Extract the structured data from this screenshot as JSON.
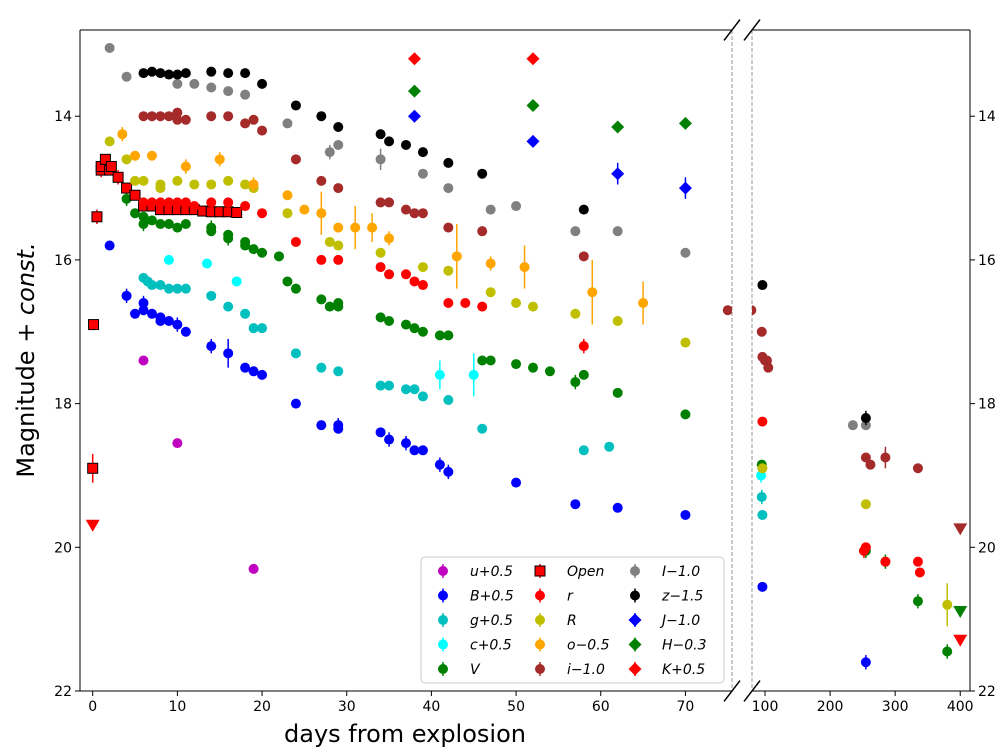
{
  "chart_data": {
    "type": "scatter",
    "title": "",
    "xlabel": "days from explosion",
    "ylabel_main": "Magnitude + ",
    "ylabel_italic": "const.",
    "ylim": [
      22,
      12.8
    ],
    "panels": [
      {
        "name": "left",
        "xlim": [
          -1.5,
          75.5
        ],
        "xticks": [
          0,
          10,
          20,
          30,
          40,
          50,
          60,
          70
        ],
        "y_tick_labels": true
      },
      {
        "name": "right",
        "xlim": [
          80,
          415
        ],
        "xticks": [
          100,
          200,
          300,
          400
        ],
        "y_tick_labels": false,
        "right_tick_labels": true
      }
    ],
    "yticks": [
      14,
      16,
      18,
      20,
      22
    ],
    "legend": {
      "placement": "lower-right",
      "entries": [
        {
          "label": "u+0.5",
          "color": "#bf00bf",
          "marker": "circle"
        },
        {
          "label": "B+0.5",
          "color": "#0000ff",
          "marker": "circle"
        },
        {
          "label": "g+0.5",
          "color": "#00bfbf",
          "marker": "circle"
        },
        {
          "label": "c+0.5",
          "color": "#00ffff",
          "marker": "circle"
        },
        {
          "label": "V",
          "color": "#008000",
          "marker": "circle"
        },
        {
          "label": "Open",
          "color": "#ff0000",
          "marker": "square"
        },
        {
          "label": "r",
          "color": "#ff0000",
          "marker": "circle"
        },
        {
          "label": "R",
          "color": "#bfbf00",
          "marker": "circle"
        },
        {
          "label": "o−0.5",
          "color": "#ffa500",
          "marker": "circle"
        },
        {
          "label": "i−1.0",
          "color": "#a52a2a",
          "marker": "circle"
        },
        {
          "label": "I−1.0",
          "color": "#808080",
          "marker": "circle"
        },
        {
          "label": "z−1.5",
          "color": "#000000",
          "marker": "circle"
        },
        {
          "label": "J−1.0",
          "color": "#0000ff",
          "marker": "diamond"
        },
        {
          "label": "H−0.3",
          "color": "#008000",
          "marker": "diamond"
        },
        {
          "label": "K+0.5",
          "color": "#ff0000",
          "marker": "diamond"
        }
      ]
    },
    "series": [
      {
        "name": "u+0.5",
        "color": "#bf00bf",
        "marker": "circle",
        "x": [
          6,
          10,
          19
        ],
        "y": [
          17.4,
          18.55,
          20.3
        ]
      },
      {
        "name": "B+0.5",
        "color": "#0000ff",
        "marker": "circle",
        "x": [
          2,
          4,
          5,
          6,
          6,
          7,
          8,
          8,
          9,
          10,
          11,
          14,
          16,
          18,
          19,
          20,
          24,
          27,
          29,
          29,
          34,
          35,
          37,
          38,
          39,
          41,
          42,
          50,
          57,
          62,
          70,
          96,
          255
        ],
        "y": [
          15.8,
          16.5,
          16.75,
          16.6,
          16.7,
          16.75,
          16.8,
          16.85,
          16.85,
          16.9,
          17.0,
          17.2,
          17.3,
          17.5,
          17.55,
          17.6,
          18.0,
          18.3,
          18.3,
          18.35,
          18.4,
          18.5,
          18.55,
          18.65,
          18.65,
          18.85,
          18.95,
          19.1,
          19.4,
          19.45,
          19.55,
          20.55,
          21.6
        ],
        "err": [
          0,
          0.1,
          0,
          0.1,
          0,
          0,
          0,
          0,
          0,
          0.1,
          0,
          0.1,
          0.2,
          0,
          0,
          0,
          0,
          0,
          0.1,
          0,
          0,
          0.1,
          0.1,
          0,
          0,
          0.1,
          0.1,
          0,
          0,
          0,
          0,
          0,
          0.1
        ]
      },
      {
        "name": "g+0.5",
        "color": "#00bfbf",
        "marker": "circle",
        "x": [
          6,
          6.5,
          7,
          8,
          9,
          10,
          11,
          14,
          16,
          18,
          19,
          20,
          24,
          27,
          29,
          34,
          35,
          37,
          38,
          39,
          42,
          46,
          58,
          61,
          95,
          96
        ],
        "y": [
          16.25,
          16.3,
          16.35,
          16.35,
          16.4,
          16.4,
          16.4,
          16.5,
          16.65,
          16.75,
          16.95,
          16.95,
          17.3,
          17.5,
          17.55,
          17.75,
          17.75,
          17.8,
          17.8,
          17.9,
          17.95,
          18.35,
          18.65,
          18.6,
          19.3,
          19.55
        ],
        "err": [
          0,
          0,
          0,
          0,
          0,
          0,
          0,
          0,
          0,
          0,
          0,
          0,
          0,
          0,
          0,
          0,
          0,
          0,
          0,
          0,
          0,
          0,
          0,
          0,
          0.1,
          0
        ]
      },
      {
        "name": "c+0.5",
        "color": "#00ffff",
        "marker": "circle",
        "x": [
          9,
          13.5,
          17,
          41,
          45,
          94
        ],
        "y": [
          16.0,
          16.05,
          16.3,
          17.6,
          17.6,
          19.0
        ],
        "err": [
          0,
          0,
          0,
          0.2,
          0.3,
          0.1
        ]
      },
      {
        "name": "V",
        "color": "#008000",
        "marker": "circle",
        "x": [
          4,
          5,
          6,
          6,
          7,
          8,
          9,
          10,
          11,
          14,
          14,
          16,
          16,
          18,
          18,
          19,
          20,
          22,
          23,
          24,
          27,
          28,
          29,
          29,
          34,
          35,
          37,
          38,
          39,
          41,
          42,
          46,
          47,
          50,
          52,
          54,
          57,
          58,
          62,
          70,
          95,
          255,
          285,
          335,
          380
        ],
        "y": [
          15.15,
          15.35,
          15.4,
          15.5,
          15.45,
          15.5,
          15.5,
          15.55,
          15.5,
          15.55,
          15.6,
          15.65,
          15.7,
          15.75,
          15.8,
          15.85,
          15.9,
          15.95,
          16.3,
          16.4,
          16.55,
          16.65,
          16.6,
          16.65,
          16.8,
          16.85,
          16.9,
          16.95,
          17.0,
          17.05,
          17.05,
          17.4,
          17.4,
          17.45,
          17.5,
          17.55,
          17.7,
          17.6,
          17.85,
          18.15,
          18.85,
          20.05,
          20.2,
          20.75,
          21.45
        ],
        "err": [
          0.1,
          0,
          0,
          0.1,
          0,
          0,
          0,
          0,
          0,
          0.1,
          0,
          0,
          0.1,
          0,
          0,
          0,
          0,
          0,
          0,
          0,
          0,
          0,
          0,
          0,
          0,
          0,
          0,
          0,
          0,
          0,
          0,
          0,
          0,
          0,
          0,
          0,
          0.1,
          0,
          0,
          0,
          0,
          0.1,
          0.1,
          0.1,
          0.1
        ]
      },
      {
        "name": "Open",
        "color": "#ff0000",
        "marker": "square",
        "x": [
          0,
          0.1,
          0.5,
          1,
          1,
          1.5,
          2,
          2.2,
          3,
          4,
          5,
          6,
          7,
          8,
          9,
          10,
          11,
          12,
          13,
          14,
          15,
          16,
          17
        ],
        "y": [
          18.9,
          16.9,
          15.4,
          14.75,
          14.7,
          14.6,
          14.75,
          14.7,
          14.85,
          15.0,
          15.1,
          15.25,
          15.25,
          15.3,
          15.3,
          15.3,
          15.3,
          15.3,
          15.32,
          15.33,
          15.33,
          15.33,
          15.34
        ],
        "err": [
          0.2,
          0,
          0.1,
          0.1,
          0,
          0,
          0,
          0,
          0.1,
          0,
          0,
          0,
          0,
          0,
          0,
          0,
          0,
          0,
          0,
          0,
          0,
          0,
          0
        ]
      },
      {
        "name": "r",
        "color": "#ff0000",
        "marker": "circle",
        "x": [
          6,
          7,
          8,
          9,
          10,
          11,
          12,
          14,
          16,
          18,
          20,
          24,
          27,
          29,
          34,
          35,
          37,
          38,
          39,
          42,
          44,
          46,
          58,
          96,
          252,
          255,
          285,
          335,
          338
        ],
        "y": [
          15.2,
          15.2,
          15.2,
          15.2,
          15.2,
          15.2,
          15.25,
          15.2,
          15.2,
          15.25,
          15.35,
          15.75,
          16.0,
          16.0,
          16.1,
          16.2,
          16.2,
          16.3,
          16.35,
          16.6,
          16.6,
          16.65,
          17.2,
          18.25,
          20.05,
          20.0,
          20.2,
          20.2,
          20.35
        ],
        "err": [
          0,
          0,
          0,
          0,
          0,
          0,
          0,
          0,
          0,
          0,
          0,
          0,
          0,
          0,
          0,
          0,
          0,
          0,
          0,
          0,
          0,
          0,
          0.1,
          0,
          0.1,
          0,
          0,
          0,
          0
        ]
      },
      {
        "name": "R",
        "color": "#bfbf00",
        "marker": "circle",
        "x": [
          2,
          4,
          5,
          6,
          8,
          8,
          10,
          12,
          14,
          16,
          18,
          19,
          23,
          28,
          29,
          34,
          39,
          42,
          47,
          50,
          52,
          57,
          62,
          70,
          96,
          255,
          380
        ],
        "y": [
          14.35,
          14.6,
          14.9,
          14.9,
          14.95,
          15.0,
          14.9,
          14.95,
          14.95,
          14.9,
          14.95,
          15.0,
          15.35,
          15.75,
          15.8,
          15.9,
          16.1,
          16.15,
          16.45,
          16.6,
          16.65,
          16.75,
          16.85,
          17.15,
          18.9,
          19.4,
          20.8
        ],
        "err": [
          0,
          0,
          0,
          0,
          0,
          0,
          0,
          0,
          0,
          0,
          0,
          0,
          0,
          0,
          0,
          0,
          0,
          0,
          0,
          0,
          0,
          0,
          0,
          0,
          0,
          0,
          0.3
        ]
      },
      {
        "name": "o−0.5",
        "color": "#ffa500",
        "marker": "circle",
        "x": [
          3.5,
          5,
          7,
          11,
          15,
          19,
          23,
          25,
          27,
          29,
          31,
          33,
          35,
          43,
          47,
          51,
          59,
          65
        ],
        "y": [
          14.25,
          14.55,
          14.55,
          14.7,
          14.6,
          14.95,
          15.1,
          15.3,
          15.35,
          15.55,
          15.55,
          15.55,
          15.7,
          15.95,
          16.05,
          16.1,
          16.45,
          16.6
        ],
        "err": [
          0.1,
          0,
          0,
          0.1,
          0.1,
          0.1,
          0,
          0,
          0.3,
          0,
          0.3,
          0.2,
          0.1,
          0.45,
          0.1,
          0.3,
          0.45,
          0.3
        ]
      },
      {
        "name": "i−1.0",
        "color": "#a52a2a",
        "marker": "circle",
        "x": [
          6,
          7,
          8,
          9,
          10,
          10,
          11,
          14,
          16,
          18,
          19,
          20,
          24,
          27,
          29,
          34,
          35,
          37,
          38,
          39,
          42,
          46,
          58,
          75,
          79,
          95,
          96,
          100,
          103,
          105,
          255,
          262,
          285,
          335
        ],
        "y": [
          14.0,
          14.0,
          14.0,
          14.0,
          14.05,
          13.95,
          14.05,
          14.0,
          14.0,
          14.1,
          14.05,
          14.2,
          14.6,
          14.9,
          15.0,
          15.2,
          15.2,
          15.3,
          15.35,
          15.35,
          15.55,
          15.6,
          15.95,
          16.7,
          16.7,
          17.0,
          17.35,
          17.4,
          17.4,
          17.5,
          18.75,
          18.85,
          18.75,
          18.9
        ],
        "err": [
          0,
          0,
          0,
          0,
          0,
          0,
          0,
          0,
          0,
          0,
          0,
          0,
          0,
          0,
          0,
          0,
          0,
          0,
          0,
          0,
          0,
          0,
          0,
          0,
          0,
          0,
          0,
          0,
          0,
          0,
          0,
          0,
          0.15,
          0
        ]
      },
      {
        "name": "I−1.0",
        "color": "#808080",
        "marker": "circle",
        "x": [
          2,
          4,
          10,
          12,
          14,
          16,
          18,
          23,
          28,
          29,
          34,
          39,
          42,
          47,
          50,
          57,
          62,
          70,
          235,
          255
        ],
        "y": [
          13.05,
          13.45,
          13.55,
          13.55,
          13.6,
          13.65,
          13.7,
          14.1,
          14.5,
          14.4,
          14.6,
          14.8,
          15.0,
          15.3,
          15.25,
          15.6,
          15.6,
          15.9,
          18.3,
          18.3
        ],
        "err": [
          0,
          0,
          0,
          0,
          0,
          0,
          0,
          0,
          0.1,
          0,
          0.15,
          0,
          0,
          0,
          0,
          0,
          0,
          0,
          0,
          0
        ]
      },
      {
        "name": "z−1.5",
        "color": "#000000",
        "marker": "circle",
        "x": [
          6,
          7,
          8,
          9,
          10,
          11,
          14,
          16,
          18,
          20,
          24,
          27,
          29,
          34,
          35,
          37,
          39,
          42,
          46,
          58,
          96,
          255
        ],
        "y": [
          13.4,
          13.38,
          13.4,
          13.42,
          13.42,
          13.4,
          13.38,
          13.4,
          13.4,
          13.55,
          13.85,
          14.0,
          14.15,
          14.25,
          14.35,
          14.4,
          14.5,
          14.65,
          14.8,
          15.3,
          16.35,
          18.2
        ],
        "err": [
          0,
          0,
          0,
          0,
          0,
          0,
          0,
          0,
          0,
          0,
          0,
          0,
          0,
          0,
          0,
          0,
          0,
          0,
          0,
          0,
          0,
          0.1
        ]
      },
      {
        "name": "J−1.0",
        "color": "#0000ff",
        "marker": "diamond",
        "x": [
          38,
          52,
          62,
          70
        ],
        "y": [
          14.0,
          14.35,
          14.8,
          15.0
        ],
        "err": [
          0,
          0,
          0.15,
          0.15
        ]
      },
      {
        "name": "H−0.3",
        "color": "#008000",
        "marker": "diamond",
        "x": [
          38,
          52,
          62,
          70
        ],
        "y": [
          13.65,
          13.85,
          14.15,
          14.1
        ],
        "err": [
          0,
          0,
          0,
          0
        ]
      },
      {
        "name": "K+0.5",
        "color": "#ff0000",
        "marker": "diamond",
        "x": [
          38,
          52
        ],
        "y": [
          13.2,
          13.2
        ],
        "err": [
          0,
          0
        ]
      }
    ],
    "upper_limits": [
      {
        "name": "r limit",
        "color": "#ff0000",
        "x": 0,
        "y": 19.7
      },
      {
        "name": "i−1.0 limit",
        "color": "#a52a2a",
        "x": 400,
        "y": 19.75
      },
      {
        "name": "V limit",
        "color": "#008000",
        "x": 400,
        "y": 20.9
      },
      {
        "name": "r limit",
        "color": "#ff0000",
        "x": 400,
        "y": 21.3
      }
    ]
  }
}
